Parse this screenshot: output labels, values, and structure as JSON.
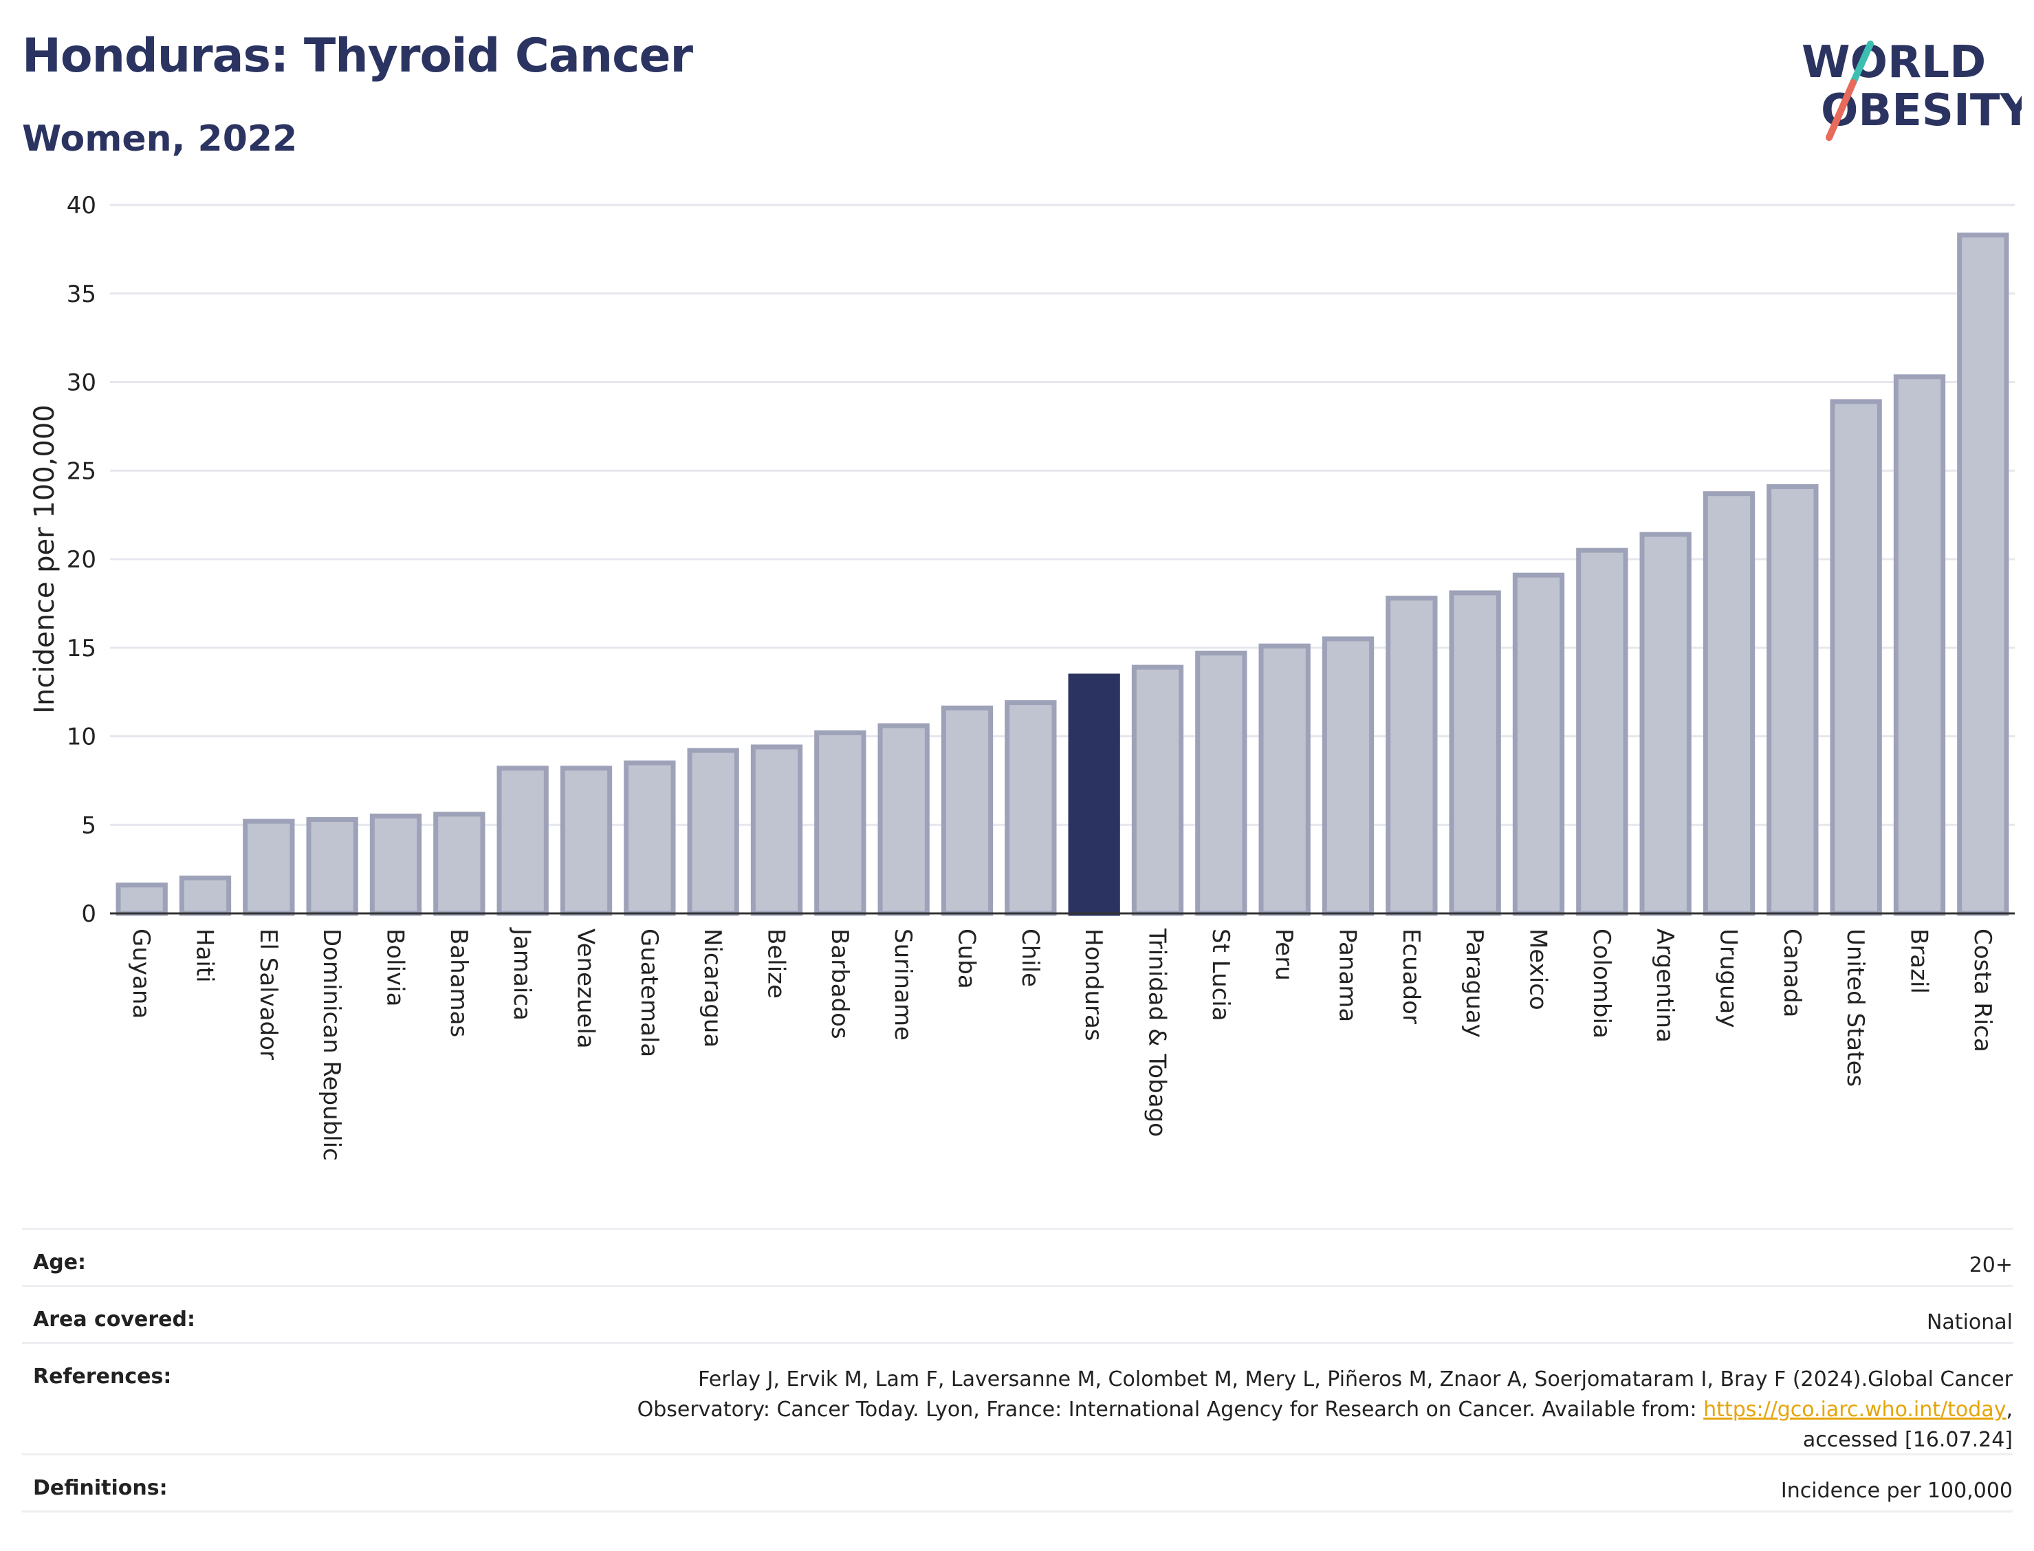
{
  "title": "Honduras: Thyroid Cancer",
  "subtitle": "Women, 2022",
  "logo": {
    "line1": "WORLD",
    "line2": "OBESITY",
    "icon": "world-obesity-logo"
  },
  "chart_data": {
    "type": "bar",
    "ylabel": "Incidence per 100,000",
    "ylim": [
      0,
      40
    ],
    "yticks": [
      0,
      5,
      10,
      15,
      20,
      25,
      30,
      35,
      40
    ],
    "grid": true,
    "highlight": "Honduras",
    "colors": {
      "bar": "#c0c3d0",
      "bar_edge": "#9ea2b8",
      "highlight": "#2b3461"
    },
    "categories": [
      "Guyana",
      "Haiti",
      "El Salvador",
      "Dominican Republic",
      "Bolivia",
      "Bahamas",
      "Jamaica",
      "Venezuela",
      "Guatemala",
      "Nicaragua",
      "Belize",
      "Barbados",
      "Suriname",
      "Cuba",
      "Chile",
      "Honduras",
      "Trinidad & Tobago",
      "St Lucia",
      "Peru",
      "Panama",
      "Ecuador",
      "Paraguay",
      "Mexico",
      "Colombia",
      "Argentina",
      "Uruguay",
      "Canada",
      "United States",
      "Brazil",
      "Costa Rica"
    ],
    "values": [
      1.6,
      2.0,
      5.2,
      5.3,
      5.5,
      5.6,
      8.2,
      8.2,
      8.5,
      9.2,
      9.4,
      10.2,
      10.6,
      11.6,
      11.9,
      13.4,
      13.9,
      14.7,
      15.1,
      15.5,
      17.8,
      18.1,
      19.1,
      20.5,
      21.4,
      23.7,
      24.1,
      28.9,
      30.3,
      38.3
    ]
  },
  "meta": {
    "age_label": "Age:",
    "age_value": "20+",
    "area_label": "Area covered:",
    "area_value": "National",
    "ref_label": "References:",
    "ref_text1": "Ferlay J, Ervik M, Lam F, Laversanne M, Colombet M, Mery L, Piñeros M, Znaor A, Soerjomataram I, Bray F (2024).Global Cancer Observatory: Cancer Today. Lyon, France: International Agency for Research on Cancer. Available from: ",
    "ref_link": "https://gco.iarc.who.int/today",
    "ref_text2": ", accessed [16.07.24]",
    "defs_label": "Definitions:",
    "defs_value": "Incidence per 100,000"
  }
}
